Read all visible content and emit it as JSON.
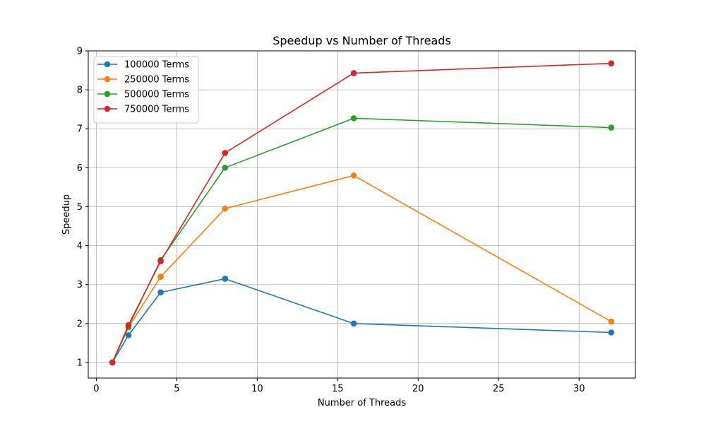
{
  "chart_data": {
    "type": "line",
    "title": "Speedup vs Number of Threads",
    "xlabel": "Number of Threads",
    "ylabel": "Speedup",
    "xlim": [
      -0.5,
      33.5
    ],
    "ylim": [
      0.6,
      9.0
    ],
    "xticks": [
      0,
      5,
      10,
      15,
      20,
      25,
      30
    ],
    "yticks": [
      1,
      2,
      3,
      4,
      5,
      6,
      7,
      8,
      9
    ],
    "grid": true,
    "legend_position": "top-left",
    "x": [
      1,
      2,
      4,
      8,
      16,
      32
    ],
    "series": [
      {
        "name": "100000 Terms",
        "color": "#1f77b4",
        "values": [
          1.0,
          1.7,
          2.8,
          3.15,
          2.0,
          1.77
        ]
      },
      {
        "name": "250000 Terms",
        "color": "#ff7f0e",
        "values": [
          1.0,
          1.9,
          3.2,
          4.95,
          5.8,
          2.05
        ]
      },
      {
        "name": "500000 Terms",
        "color": "#2ca02c",
        "values": [
          1.0,
          1.92,
          3.63,
          6.0,
          7.27,
          7.03
        ]
      },
      {
        "name": "750000 Terms",
        "color": "#d62728",
        "values": [
          1.0,
          1.96,
          3.6,
          6.38,
          8.43,
          8.68
        ]
      }
    ]
  }
}
